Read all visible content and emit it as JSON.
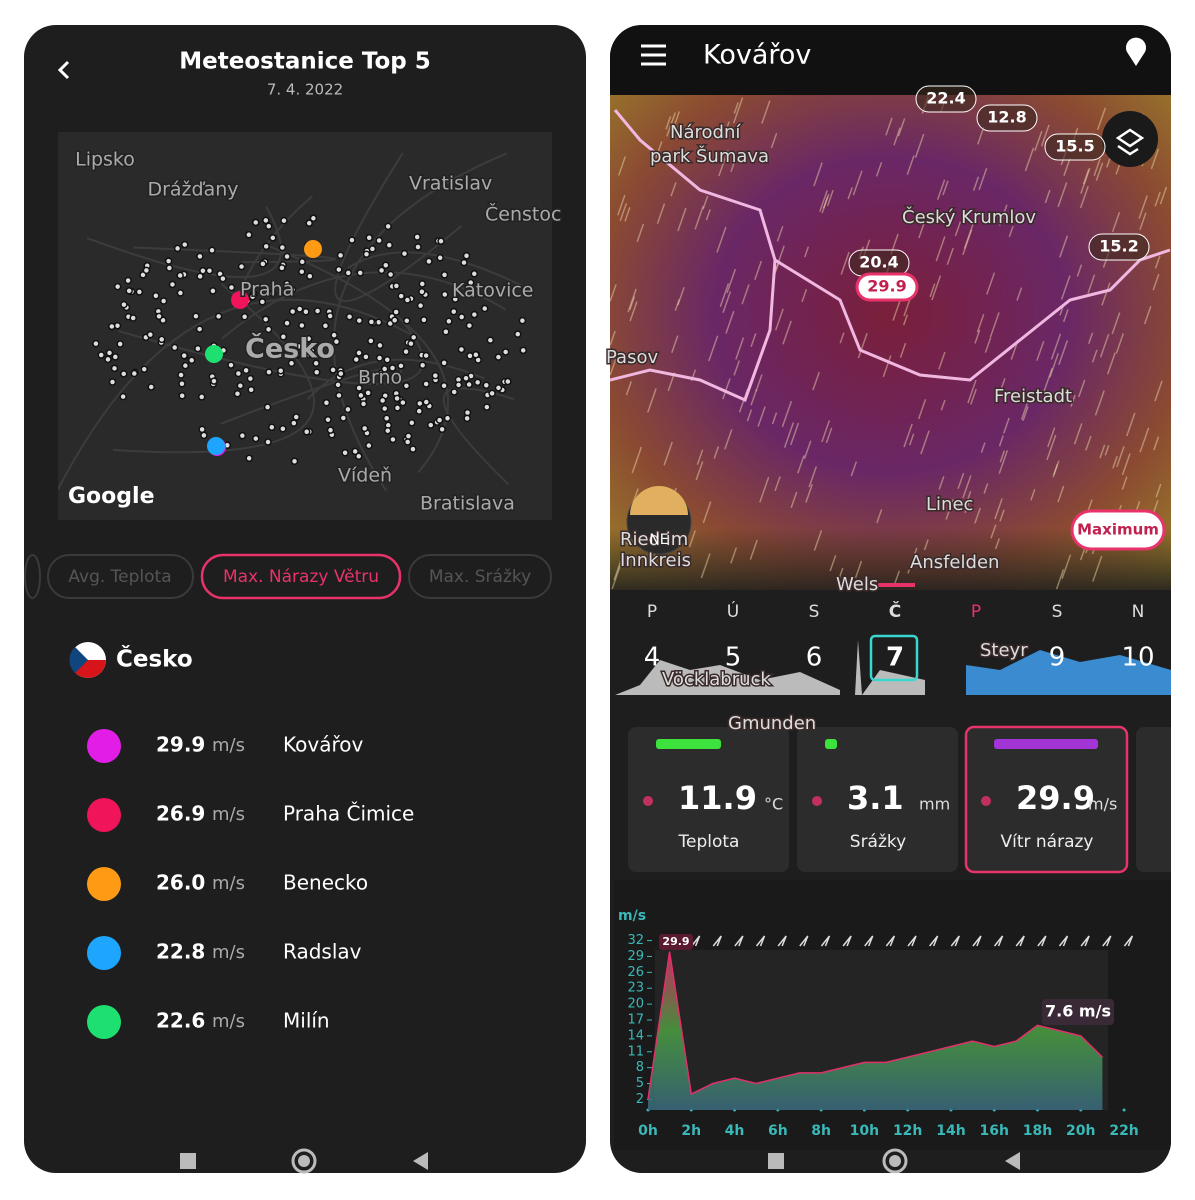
{
  "left": {
    "title": "Meteostanice Top 5",
    "date": "7. 4. 2022",
    "map_labels": [
      "Lipsko",
      "Drážďany",
      "Vratislav",
      "Čenstoc",
      "Praha",
      "Katovice",
      "Česko",
      "Brno",
      "Vídeň",
      "Bratislava",
      "Google"
    ],
    "tabs": [
      "Avg. Teplota",
      "Max. Nárazy Větru",
      "Max. Srážky"
    ],
    "country": "Česko",
    "stations": [
      {
        "value": "29.9",
        "unit": "m/s",
        "name": "Kovářov",
        "color": "#e21ee6"
      },
      {
        "value": "26.9",
        "unit": "m/s",
        "name": "Praha Čimice",
        "color": "#f0145a"
      },
      {
        "value": "26.0",
        "unit": "m/s",
        "name": "Benecko",
        "color": "#ff9a14"
      },
      {
        "value": "22.8",
        "unit": "m/s",
        "name": "Radslav",
        "color": "#1ea6ff"
      },
      {
        "value": "22.6",
        "unit": "m/s",
        "name": "Milín",
        "color": "#1ee070"
      }
    ]
  },
  "right": {
    "title": "Kovářov",
    "map_labels": [
      "Národní",
      "park Šumava",
      "Český Krumlov",
      "Pasov",
      "Freistadt",
      "Linec",
      "Ansfelden",
      "Ried im",
      "Innkreis",
      "Wels",
      "Steyr",
      "Gmunden",
      "Vöcklabruck"
    ],
    "badges": [
      "22.4",
      "12.8",
      "15.5",
      "15.2",
      "20.4",
      "29.9"
    ],
    "wind_dir": "NE",
    "maximum": "Maximum",
    "days": [
      {
        "day": "P",
        "num": "4"
      },
      {
        "day": "Ú",
        "num": "5"
      },
      {
        "day": "S",
        "num": "6"
      },
      {
        "day": "Č",
        "num": "7"
      },
      {
        "day": "P",
        "num": null
      },
      {
        "day": "S",
        "num": "9"
      },
      {
        "day": "N",
        "num": "10"
      }
    ],
    "cards": [
      {
        "value": "11.9",
        "unit": "°C",
        "label": "Teplota",
        "color": "#3de23d"
      },
      {
        "value": "3.1",
        "unit": "mm",
        "label": "Srážky",
        "color": "#3de23d"
      },
      {
        "value": "29.9",
        "unit": "m/s",
        "label": "Vítr nárazy",
        "color": "#a335d6"
      }
    ],
    "chart": {
      "unit": "m/s",
      "peak_label": "29.9",
      "current_label": "7.6 m/s",
      "ylim": [
        0,
        34
      ],
      "yticks": [
        32,
        29,
        26,
        23,
        20,
        17,
        14,
        11,
        8,
        5,
        2
      ],
      "xlim": [
        0,
        23
      ],
      "xticks": [
        {
          "value": 0,
          "label": "0h"
        },
        {
          "value": 2,
          "label": "2h"
        },
        {
          "value": 4,
          "label": "4h"
        },
        {
          "value": 6,
          "label": "6h"
        },
        {
          "value": 8,
          "label": "8h"
        },
        {
          "value": 10,
          "label": "10h"
        },
        {
          "value": 12,
          "label": "12h"
        },
        {
          "value": 14,
          "label": "14h"
        },
        {
          "value": 16,
          "label": "16h"
        },
        {
          "value": 18,
          "label": "18h"
        },
        {
          "value": 20,
          "label": "20h"
        },
        {
          "value": 22,
          "label": "22h"
        }
      ],
      "x": [
        0,
        1,
        2,
        3,
        4,
        5,
        6,
        7,
        8,
        9,
        10,
        11,
        12,
        13,
        14,
        15,
        16,
        17,
        18,
        19,
        20,
        21
      ],
      "values": [
        2,
        29.9,
        3,
        5,
        6,
        5,
        6,
        7,
        7,
        8,
        9,
        9,
        10,
        11,
        12,
        13,
        12,
        13,
        16,
        15,
        14,
        10
      ]
    }
  }
}
